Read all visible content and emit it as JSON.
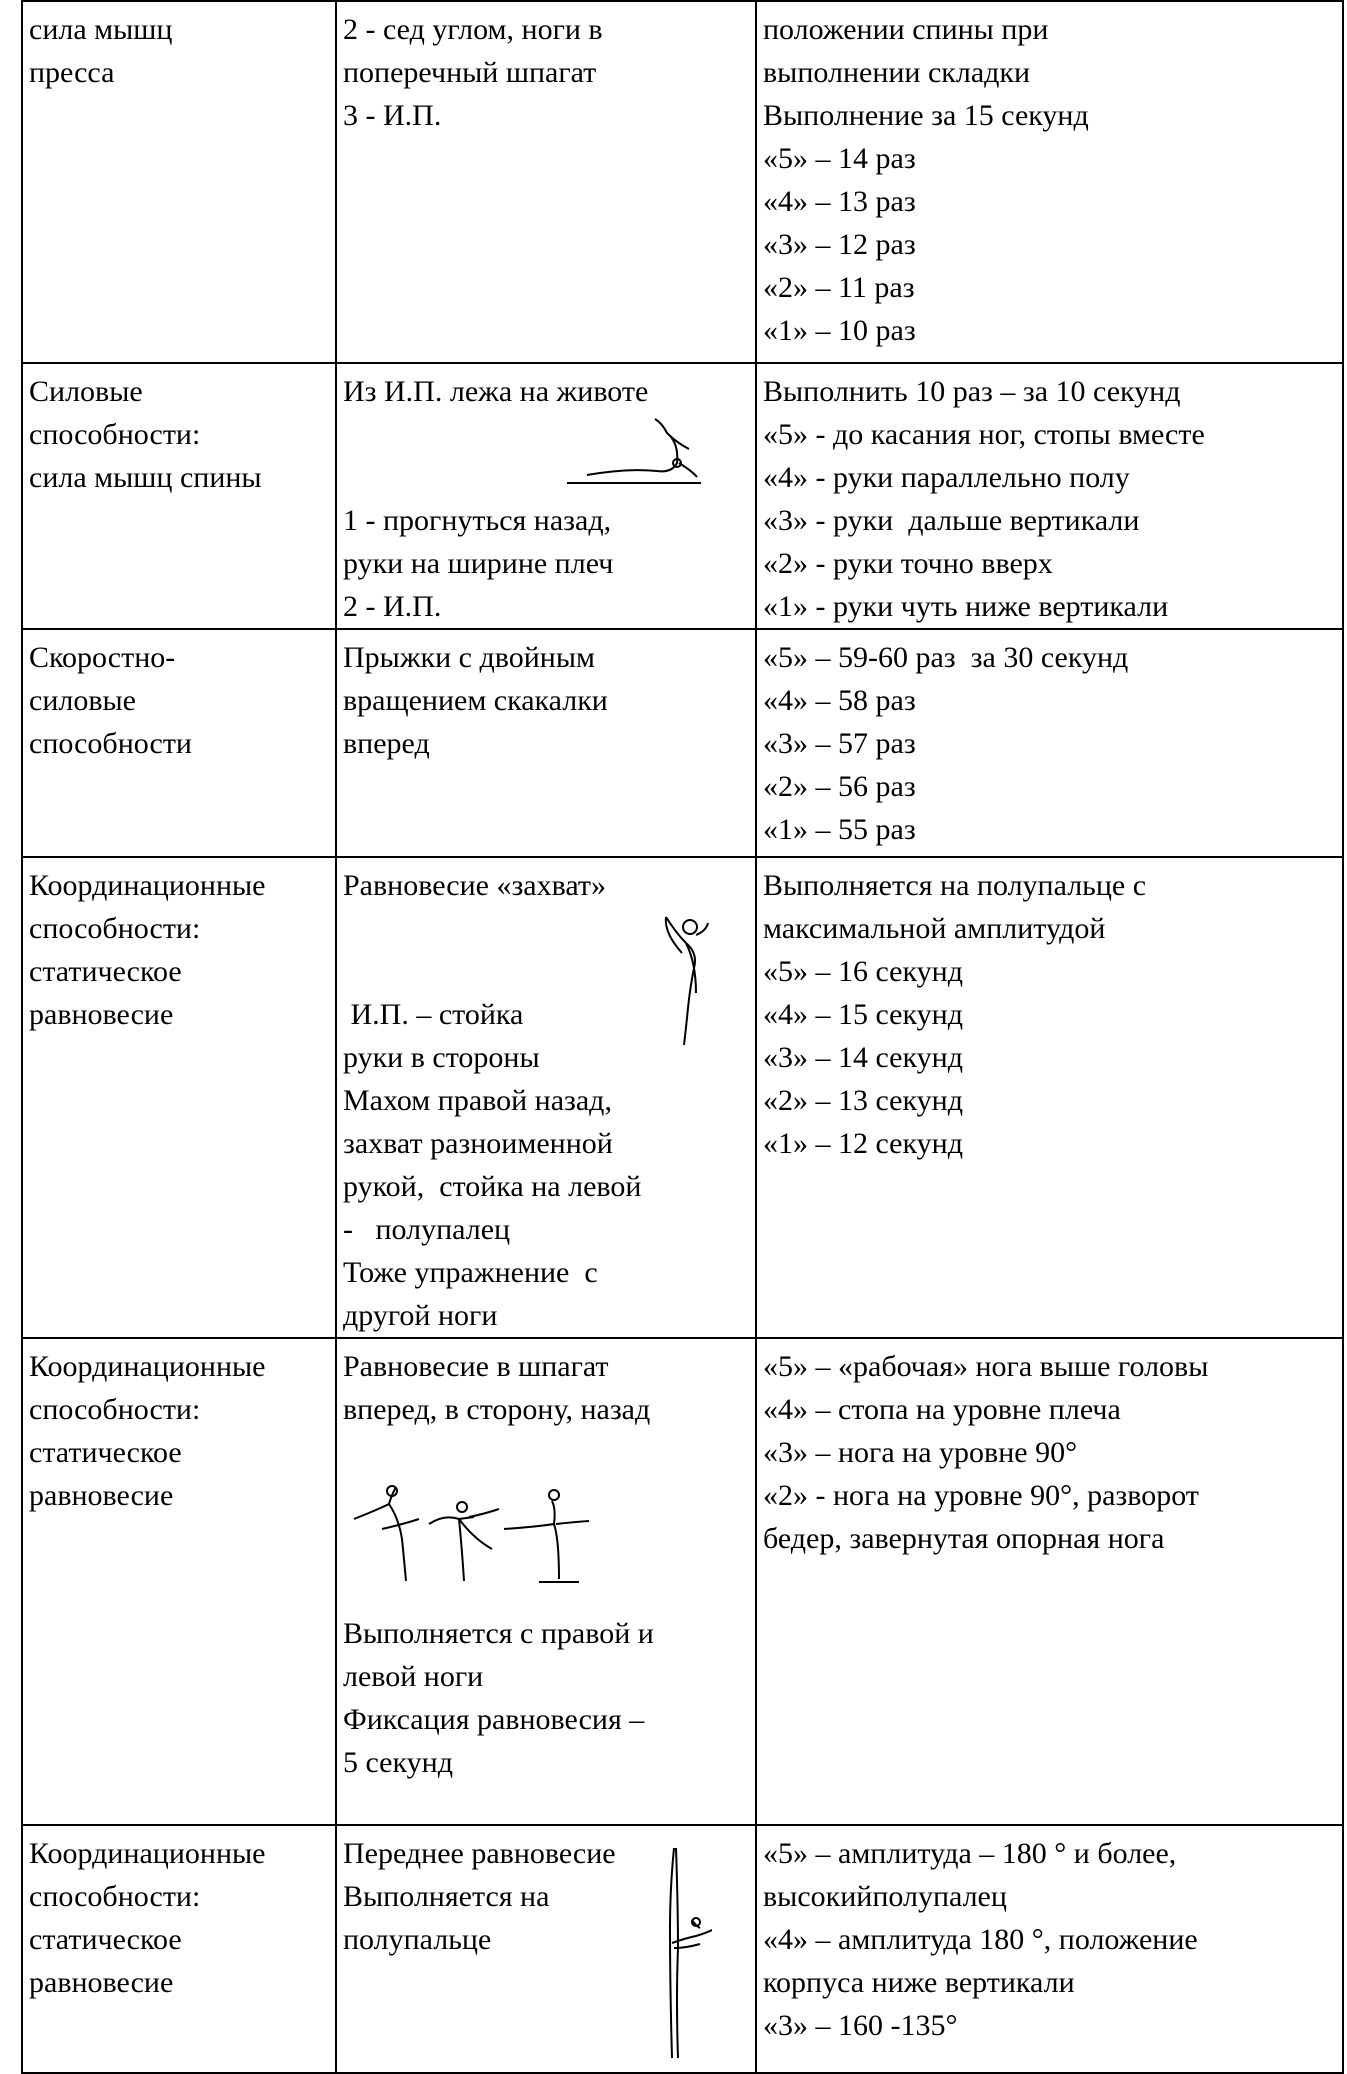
{
  "table": {
    "rows": [
      [
        [
          "сила мышц",
          "пресса"
        ],
        [
          "2 - сед углом, ноги в",
          "поперечный шпагат",
          "3 - И.П."
        ],
        [
          "положении спины при",
          "выполнении складки",
          "Выполнение за 15 секунд",
          "«5» – 14 раз",
          "«4» – 13 раз",
          "«3» – 12 раз",
          "«2» – 11 раз",
          "«1» – 10 раз"
        ]
      ],
      [
        [
          "Силовые",
          "способности:",
          "сила мышц спины"
        ],
        [
          "Из И.П. лежа на животе",
          "1 - прогнуться назад,",
          "руки на ширине плеч",
          "2 - И.П."
        ],
        [
          "Выполнить 10 раз – за 10 секунд",
          "«5» - до касания ног, стопы вместе",
          "«4» - руки параллельно полу",
          "«3» - руки  дальше вертикали",
          "«2» - руки точно вверх",
          "«1» - руки чуть ниже вертикали"
        ]
      ],
      [
        [
          "Скоростно-",
          "силовые",
          "способности"
        ],
        [
          "Прыжки с двойным",
          "вращением скакалки",
          "вперед"
        ],
        [
          "«5» – 59-60 раз  за 30 секунд",
          "«4» – 58 раз",
          "«3» – 57 раз",
          "«2» – 56 раз",
          "«1» – 55 раз"
        ]
      ],
      [
        [
          "Координационные",
          "способности:",
          "статическое",
          "равновесие"
        ],
        [
          "Равновесие «захват»",
          " И.П. – стойка",
          "руки в стороны",
          "Махом правой назад,",
          "захват разноименной",
          "рукой,  стойка на левой",
          "-   полупалец",
          "Тоже упражнение  с",
          "другой ноги"
        ],
        [
          "Выполняется на полупальце с",
          "максимальной амплитудой",
          "«5» – 16 секунд",
          "«4» – 15 секунд",
          "«3» – 14 секунд",
          "«2» – 13 секунд",
          "«1» – 12 секунд"
        ]
      ],
      [
        [
          "Координационные",
          "способности:",
          "статическое",
          "равновесие"
        ],
        [
          "Равновесие в шпагат",
          "вперед, в сторону, назад",
          "Выполняется с правой и",
          "левой ноги",
          "Фиксация равновесия –",
          "5 секунд"
        ],
        [
          "«5» – «рабочая» нога выше головы",
          "«4» – стопа на уровне плеча",
          "«3» – нога на уровне 90°",
          "«2» - нога на уровне 90°, разворот",
          "бедер, завернутая опорная нога"
        ]
      ],
      [
        [
          "Координационные",
          "способности:",
          "статическое",
          "равновесие"
        ],
        [
          "Переднее равновесие",
          "Выполняется на",
          "полупальце"
        ],
        [
          "«5» – амплитуда – 180 ° и более,",
          "высокийполупалец",
          "«4» – амплитуда 180 °, положение",
          "корпуса ниже вертикали",
          "«3» – 160 -135°"
        ]
      ]
    ]
  }
}
